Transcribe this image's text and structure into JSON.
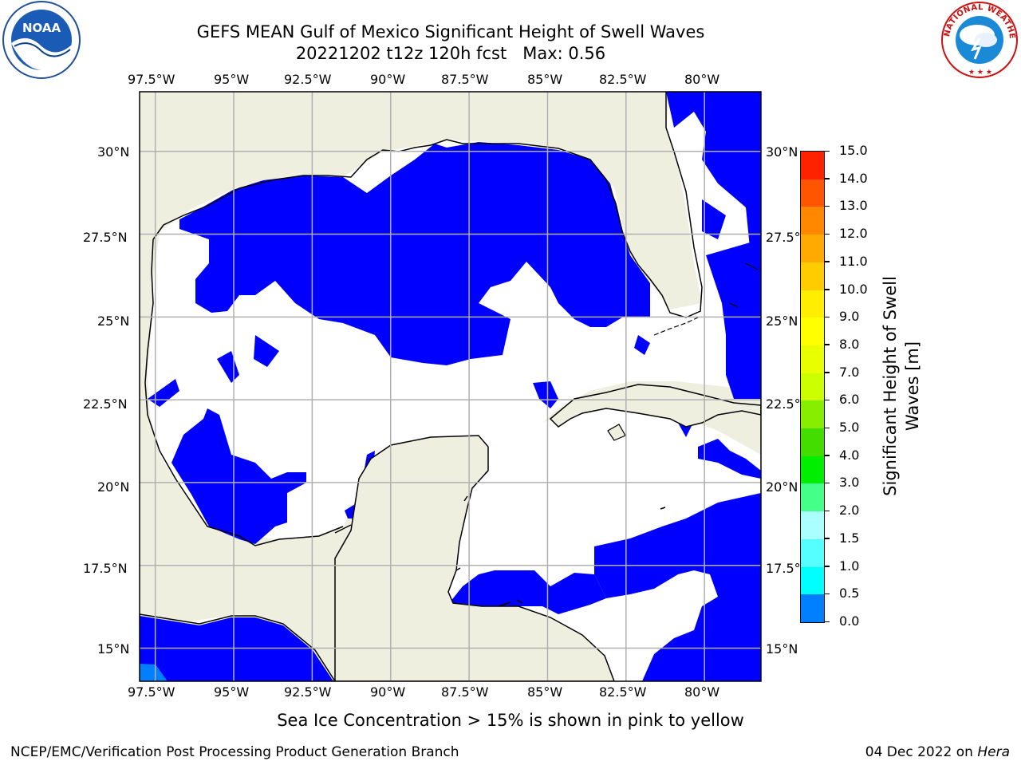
{
  "header": {
    "title_line1": "GEFS MEAN Gulf of Mexico Significant Height of Swell Waves",
    "title_line2": "20221202 t12z 120h fcst   Max: 0.56"
  },
  "logos": {
    "left": {
      "icon": "noaa-logo",
      "text": "NOAA"
    },
    "right": {
      "icon": "national-weather-service-logo",
      "text": "NATIONAL WEATHER SERVICE"
    }
  },
  "map": {
    "longitude_ticks": [
      "97.5°W",
      "95°W",
      "92.5°W",
      "90°W",
      "87.5°W",
      "85°W",
      "82.5°W",
      "80°W"
    ],
    "latitude_ticks": [
      "30°N",
      "27.5°N",
      "25°N",
      "22.5°N",
      "20°N",
      "17.5°N",
      "15°N"
    ],
    "lon_range": [
      -98.0,
      -78.2
    ],
    "lat_range": [
      14.0,
      31.8
    ],
    "colors": {
      "land": "#efefdf",
      "swell_0_0_5": "#0000ff",
      "swell_0_5_1_0": "#0080ff",
      "water_no_data": "#ffffff",
      "grid": "#b0b0b0"
    }
  },
  "colorbar": {
    "ticks": [
      "15.0",
      "14.0",
      "13.0",
      "12.0",
      "11.0",
      "10.0",
      "9.0",
      "8.0",
      "7.0",
      "6.0",
      "5.0",
      "4.0",
      "3.0",
      "2.0",
      "1.5",
      "1.0",
      "0.5",
      "0.0"
    ],
    "colors": [
      "#ff0000",
      "#ff2200",
      "#ff5500",
      "#ff8800",
      "#ffaa00",
      "#ffcc00",
      "#ffee00",
      "#ffff00",
      "#e8ff00",
      "#ccff00",
      "#88ee00",
      "#44dd00",
      "#00ee00",
      "#44ff88",
      "#aaffff",
      "#55ffff",
      "#00ffff",
      "#0080ff",
      "#0000ff"
    ],
    "label_line1": "Significant Height of Swell",
    "label_line2": "Waves [m]"
  },
  "note": "Sea Ice Concentration > 15% is shown in pink to yellow",
  "footer": {
    "left": "NCEP/EMC/Verification Post Processing Product Generation Branch",
    "right_date": "04 Dec 2022 on",
    "right_host": "Hera"
  }
}
